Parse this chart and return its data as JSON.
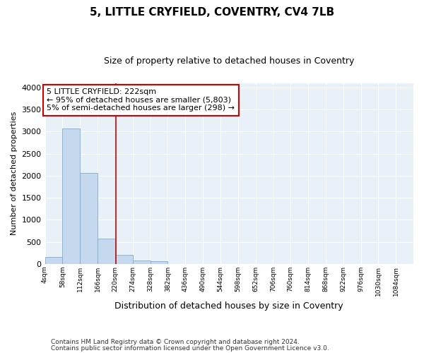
{
  "title": "5, LITTLE CRYFIELD, COVENTRY, CV4 7LB",
  "subtitle": "Size of property relative to detached houses in Coventry",
  "xlabel": "Distribution of detached houses by size in Coventry",
  "ylabel": "Number of detached properties",
  "footnote1": "Contains HM Land Registry data © Crown copyright and database right 2024.",
  "footnote2": "Contains public sector information licensed under the Open Government Licence v3.0.",
  "annotation_title": "5 LITTLE CRYFIELD: 222sqm",
  "annotation_line1": "← 95% of detached houses are smaller (5,803)",
  "annotation_line2": "5% of semi-detached houses are larger (298) →",
  "property_size": 222,
  "bin_starts": [
    4,
    58,
    112,
    166,
    220,
    274,
    328,
    382,
    436,
    490,
    544,
    598,
    652,
    706,
    760,
    814,
    868,
    922,
    976,
    1030
  ],
  "bin_labels": [
    "4sqm",
    "58sqm",
    "112sqm",
    "166sqm",
    "220sqm",
    "274sqm",
    "328sqm",
    "382sqm",
    "436sqm",
    "490sqm",
    "544sqm",
    "598sqm",
    "652sqm",
    "706sqm",
    "760sqm",
    "814sqm",
    "868sqm",
    "922sqm",
    "976sqm",
    "1030sqm",
    "1084sqm"
  ],
  "bar_heights": [
    155,
    3070,
    2060,
    565,
    210,
    75,
    55,
    0,
    0,
    0,
    0,
    0,
    0,
    0,
    0,
    0,
    0,
    0,
    0,
    0
  ],
  "bar_color": "#c5d8ee",
  "bar_edge_color": "#7aaed4",
  "vline_color": "#cc0000",
  "annotation_box_edgecolor": "#cc0000",
  "annotation_fill": "#ffffff",
  "fig_bg_color": "#ffffff",
  "plot_bg_color": "#e8f0f8",
  "grid_color": "#ffffff",
  "ylim": [
    0,
    4100
  ],
  "yticks": [
    0,
    500,
    1000,
    1500,
    2000,
    2500,
    3000,
    3500,
    4000
  ]
}
